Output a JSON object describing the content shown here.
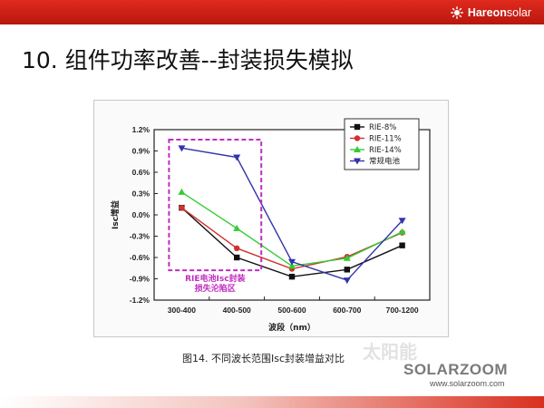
{
  "header": {
    "brand_bold": "Hareon",
    "brand_light": "solar",
    "bar_color": "#cc2215"
  },
  "slide": {
    "title": "10. 组件功率改善--封装损失模拟",
    "caption": "图14. 不同波长范围Isc封装增益对比"
  },
  "watermark": {
    "logo": "SOLARZOOM",
    "url": "www.solarzoom.com",
    "faint_text": "太阳能"
  },
  "chart_data": {
    "type": "line",
    "categories": [
      "300-400",
      "400-500",
      "500-600",
      "600-700",
      "700-1200"
    ],
    "xlabel": "波段（nm）",
    "ylabel": "Isc增益",
    "ylim": [
      -1.2,
      1.2
    ],
    "yticks": [
      "1.2%",
      "0.9%",
      "0.6%",
      "0.3%",
      "0.0%",
      "-0.3%",
      "-0.6%",
      "-0.9%",
      "-1.2%"
    ],
    "ytick_values": [
      1.2,
      0.9,
      0.6,
      0.3,
      0.0,
      -0.3,
      -0.6,
      -0.9,
      -1.2
    ],
    "legend_position": "top-right",
    "series": [
      {
        "name": "RIE-8%",
        "color": "#111111",
        "marker": "square",
        "values": [
          0.1,
          -0.6,
          -0.87,
          -0.77,
          -0.43
        ]
      },
      {
        "name": "RIE-11%",
        "color": "#d0312d",
        "marker": "circle",
        "values": [
          0.1,
          -0.47,
          -0.76,
          -0.59,
          -0.25
        ]
      },
      {
        "name": "RIE-14%",
        "color": "#33cc33",
        "marker": "triangle-up",
        "values": [
          0.32,
          -0.19,
          -0.72,
          -0.61,
          -0.24
        ]
      },
      {
        "name": "常规电池",
        "color": "#3333aa",
        "marker": "triangle-down",
        "values": [
          0.94,
          0.81,
          -0.66,
          -0.92,
          -0.08
        ]
      }
    ],
    "annotation": {
      "text_line1": "RIE电池Isc封装",
      "text_line2": "损失沦陷区",
      "color": "#c02cc0",
      "x_from": "300-400",
      "x_to": "400-500"
    }
  }
}
